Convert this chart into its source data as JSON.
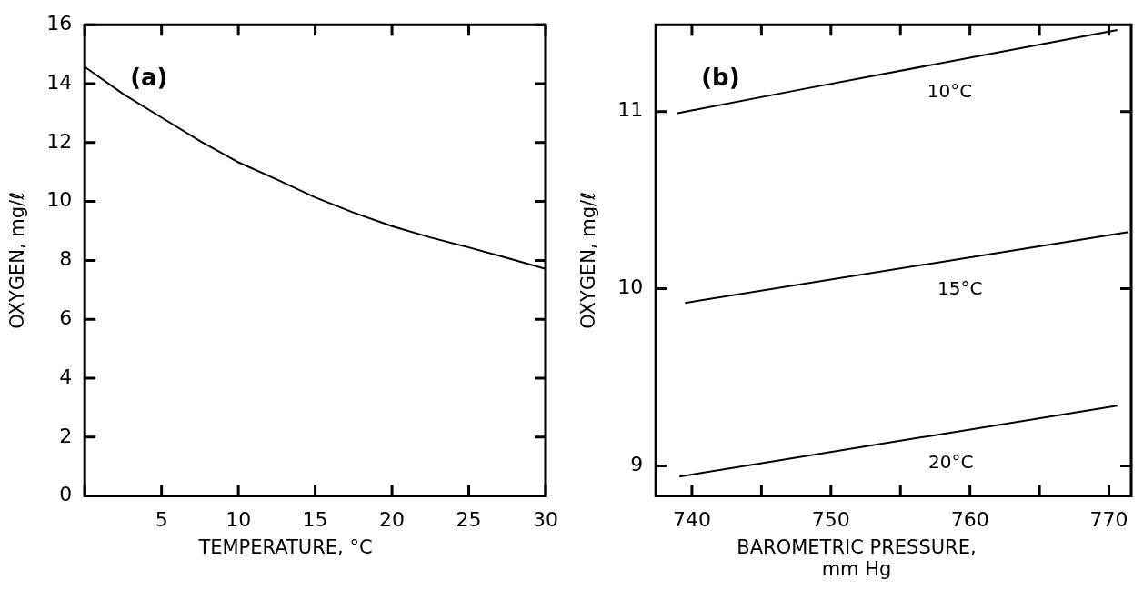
{
  "chart_data": [
    {
      "type": "line",
      "xlabel": "TEMPERATURE,  °C",
      "ylabel": "OXYGEN, mg/ℓ",
      "annotations": [
        "(a)"
      ],
      "xlim": [
        0,
        30
      ],
      "ylim": [
        0,
        16
      ],
      "xticks": [
        {
          "value": 0,
          "label": null
        },
        5,
        10,
        15,
        20,
        25,
        30
      ],
      "yticks": [
        0,
        2,
        4,
        6,
        8,
        10,
        12,
        14,
        16
      ],
      "grid": false,
      "legend": false,
      "marker": "none",
      "line_style": "solid",
      "x": [
        0,
        2.5,
        5,
        7.5,
        10,
        12.5,
        15,
        17.5,
        20,
        22.5,
        25,
        27.5,
        30
      ],
      "series": [
        {
          "color": "#000000",
          "values": [
            14.57,
            13.65,
            12.85,
            12.05,
            11.33,
            10.75,
            10.14,
            9.62,
            9.16,
            8.78,
            8.44,
            8.08,
            7.71
          ]
        }
      ]
    },
    {
      "type": "line",
      "xlabel": "BAROMETRIC PRESSURE, mm Hg",
      "ylabel": "OXYGEN, mg/ℓ",
      "annotations": [
        "(b)"
      ],
      "xlim": [
        737.4,
        771.6
      ],
      "ylim": [
        8.83,
        11.49
      ],
      "xticks": [
        740,
        {
          "value": 745,
          "label": null
        },
        750,
        {
          "value": 755,
          "label": null
        },
        760,
        {
          "value": 765,
          "label": null
        },
        770
      ],
      "yticks": [
        9,
        10,
        11
      ],
      "grid": false,
      "legend": false,
      "marker": "none",
      "line_style": "solid",
      "series": [
        {
          "name": "10°C",
          "color": "#000000",
          "x": [
            738.9,
            748.2,
            770.6
          ],
          "values": [
            10.99,
            11.13,
            11.46
          ]
        },
        {
          "name": "15°C",
          "color": "#000000",
          "x": [
            739.5,
            771.4
          ],
          "values": [
            9.92,
            10.32
          ]
        },
        {
          "name": "20°C",
          "color": "#000000",
          "x": [
            739.1,
            770.6
          ],
          "values": [
            8.94,
            9.34
          ]
        }
      ]
    }
  ]
}
